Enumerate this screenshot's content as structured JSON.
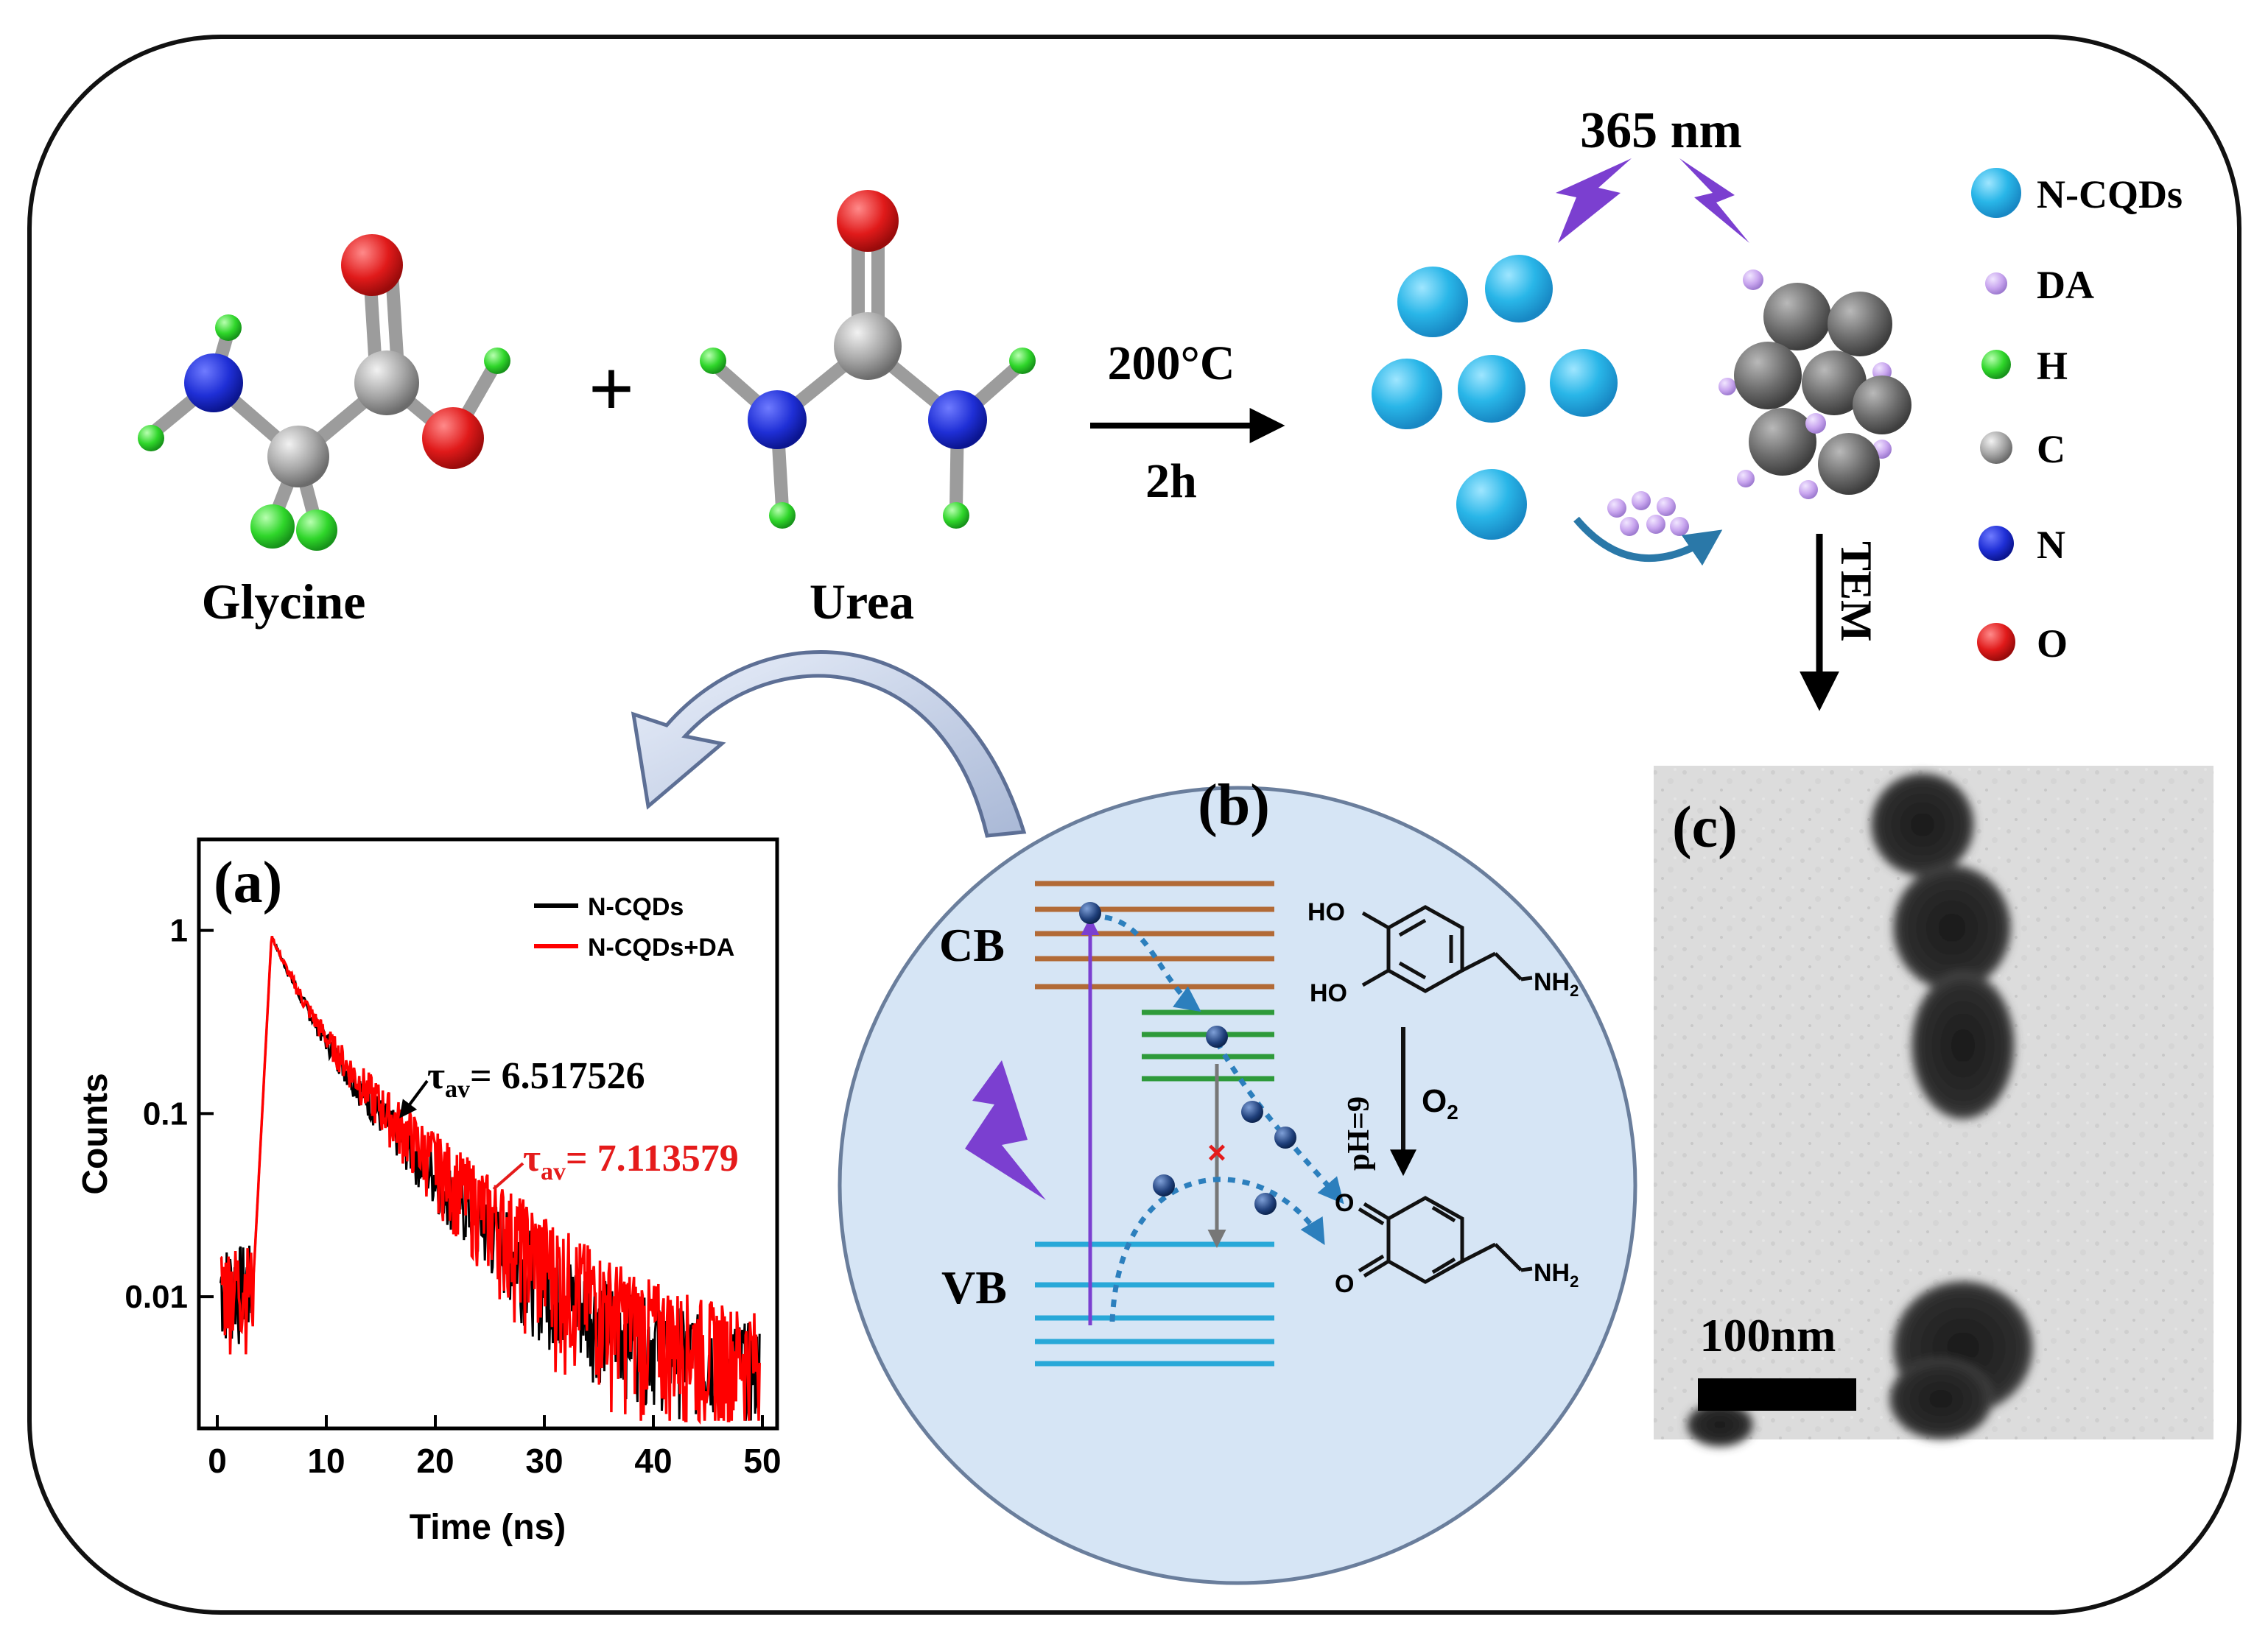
{
  "reaction": {
    "reactant1": "Glycine",
    "reactant2": "Urea",
    "plus": "+",
    "condition_top": "200°C",
    "condition_bottom": "2h",
    "excitation": "365 nm",
    "tem_label": "TEM"
  },
  "legend": [
    {
      "label": "N-CQDs",
      "color": "#29b6e8"
    },
    {
      "label": "DA",
      "color": "#c9a6ef"
    },
    {
      "label": "H",
      "color": "#2fd62a"
    },
    {
      "label": "C",
      "color": "#8e8e8e"
    },
    {
      "label": "N",
      "color": "#1f2fd6"
    },
    {
      "label": "O",
      "color": "#e01a1a"
    }
  ],
  "panel_a": {
    "label": "(a)",
    "ylabel": "Counts",
    "xlabel": "Time (ns)",
    "tau1": {
      "prefix": "τ",
      "sub": "av",
      "value": "= 6.517526"
    },
    "tau2": {
      "prefix": "τ",
      "sub": "av",
      "value": "= 7.113579"
    },
    "chart_data": {
      "type": "line",
      "xlabel": "Time (ns)",
      "ylabel": "Counts",
      "yscale": "log",
      "xlim": [
        0,
        50
      ],
      "ylim": [
        0.002,
        3
      ],
      "xticks": [
        "0",
        "10",
        "20",
        "30",
        "40",
        "50"
      ],
      "yticks": [
        "0.01",
        "0.1",
        "1"
      ],
      "legend_position": "top-right",
      "series": [
        {
          "name": "N-CQDs",
          "color": "#000000",
          "tau": 6.517526,
          "peak_x": 5.0
        },
        {
          "name": "N-CQDs+DA",
          "color": "#ff0000",
          "tau": 7.113579,
          "peak_x": 5.0
        }
      ]
    }
  },
  "panel_b": {
    "label": "(b)",
    "cb": "CB",
    "vb": "VB",
    "ho1": "HO",
    "ho2": "HO",
    "nh2_top": "NH",
    "nh2_bottom": "NH",
    "nh2_sub": "2",
    "o_top": "O",
    "o_bottom": "O",
    "ph": "pH=9",
    "o2": "O",
    "o2_sub": "2",
    "electron": "−"
  },
  "panel_c": {
    "label": "(c)",
    "scale": "100nm"
  }
}
